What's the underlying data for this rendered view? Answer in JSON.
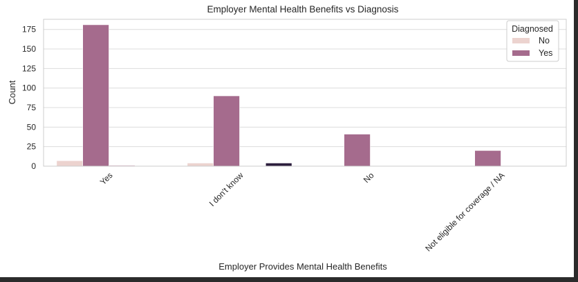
{
  "chart_data": {
    "type": "bar",
    "title": "Employer Mental Health Benefits vs Diagnosis",
    "xlabel": "Employer Provides Mental Health Benefits",
    "ylabel": "Count",
    "categories": [
      "Yes",
      "I don't know",
      "No",
      "Not eligible for coverage / NA"
    ],
    "yticks": [
      "0",
      "25",
      "50",
      "75",
      "100",
      "125",
      "150",
      "175"
    ],
    "ylim": [
      0,
      188
    ],
    "grid": true,
    "legend": {
      "title": "Diagnosed",
      "position": "top-right",
      "entries": [
        "No",
        "Yes"
      ]
    },
    "series": [
      {
        "name": "No",
        "color": "#ecd3cf",
        "values": [
          7,
          4,
          0,
          0
        ]
      },
      {
        "name": "Yes",
        "color": "#a56b8d",
        "values": [
          181,
          90,
          41,
          20
        ]
      },
      {
        "color": "#c690a9",
        "values": [
          1,
          0,
          0,
          0
        ]
      },
      {
        "color": "#2c1e3d",
        "values": [
          0,
          4,
          0,
          0
        ]
      }
    ]
  }
}
